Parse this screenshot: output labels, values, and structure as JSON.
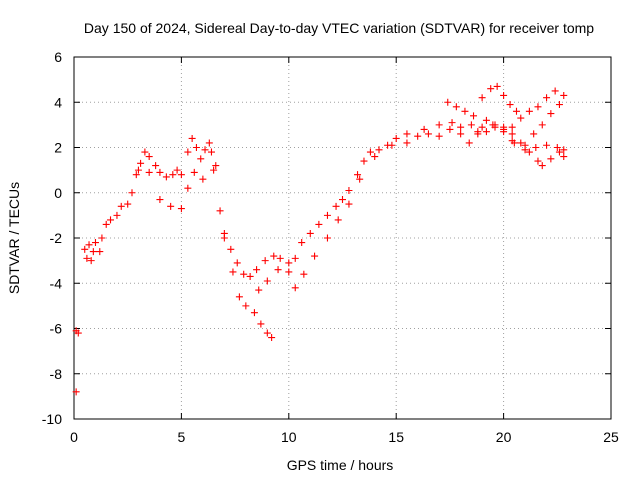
{
  "chart_data": {
    "type": "scatter",
    "title": "Day 150 of 2024, Sidereal Day-to-day VTEC variation (SDTVAR) for receiver tomp",
    "xlabel": "GPS time / hours",
    "ylabel": "SDTVAR / TECUs",
    "xlim": [
      0,
      25
    ],
    "ylim": [
      -10,
      6
    ],
    "xticks": [
      0,
      5,
      10,
      15,
      20,
      25
    ],
    "yticks": [
      -10,
      -8,
      -6,
      -4,
      -2,
      0,
      2,
      4,
      6
    ],
    "grid": true,
    "marker": "plus",
    "color": "#ff0000",
    "series": [
      {
        "points": [
          [
            0.1,
            -6.1
          ],
          [
            0.1,
            -8.8
          ],
          [
            0.2,
            -6.2
          ],
          [
            0.5,
            -2.5
          ],
          [
            0.6,
            -2.9
          ],
          [
            0.7,
            -2.3
          ],
          [
            0.8,
            -3.0
          ],
          [
            0.9,
            -2.6
          ],
          [
            1.0,
            -2.2
          ],
          [
            1.2,
            -2.6
          ],
          [
            1.3,
            -2.0
          ],
          [
            1.5,
            -1.4
          ],
          [
            1.7,
            -1.2
          ],
          [
            2.0,
            -1.0
          ],
          [
            2.2,
            -0.6
          ],
          [
            2.5,
            -0.5
          ],
          [
            2.7,
            0.0
          ],
          [
            2.9,
            0.8
          ],
          [
            3.1,
            1.3
          ],
          [
            3.3,
            1.8
          ],
          [
            3.5,
            1.6
          ],
          [
            3.8,
            1.2
          ],
          [
            4.0,
            0.9
          ],
          [
            4.3,
            0.7
          ],
          [
            4.6,
            0.8
          ],
          [
            4.8,
            1.0
          ],
          [
            5.0,
            0.8
          ],
          [
            5.3,
            1.8
          ],
          [
            5.5,
            2.4
          ],
          [
            5.7,
            2.0
          ],
          [
            5.9,
            1.5
          ],
          [
            6.1,
            1.9
          ],
          [
            6.3,
            2.2
          ],
          [
            6.5,
            1.0
          ],
          [
            6.8,
            -0.8
          ],
          [
            7.0,
            -1.8
          ],
          [
            7.3,
            -2.5
          ],
          [
            7.6,
            -3.1
          ],
          [
            7.9,
            -3.6
          ],
          [
            8.2,
            -3.7
          ],
          [
            8.5,
            -3.4
          ],
          [
            8.9,
            -3.0
          ],
          [
            9.3,
            -2.8
          ],
          [
            9.6,
            -2.9
          ],
          [
            10.0,
            -3.1
          ],
          [
            10.3,
            -2.9
          ],
          [
            10.6,
            -2.2
          ],
          [
            11.0,
            -1.8
          ],
          [
            11.4,
            -1.4
          ],
          [
            11.8,
            -1.0
          ],
          [
            12.2,
            -0.6
          ],
          [
            12.5,
            -0.3
          ],
          [
            12.8,
            0.1
          ],
          [
            13.2,
            0.8
          ],
          [
            13.5,
            1.4
          ],
          [
            13.8,
            1.8
          ],
          [
            14.2,
            1.9
          ],
          [
            14.6,
            2.1
          ],
          [
            15.0,
            2.4
          ],
          [
            15.5,
            2.2
          ],
          [
            16.0,
            2.5
          ],
          [
            16.5,
            2.6
          ],
          [
            17.0,
            2.5
          ],
          [
            17.5,
            2.8
          ],
          [
            18.0,
            2.9
          ],
          [
            18.5,
            3.0
          ],
          [
            19.0,
            2.9
          ],
          [
            19.5,
            3.0
          ],
          [
            20.0,
            2.8
          ],
          [
            20.5,
            2.2
          ],
          [
            21.0,
            1.9
          ],
          [
            21.5,
            2.0
          ],
          [
            22.0,
            2.1
          ],
          [
            22.5,
            2.0
          ],
          [
            22.8,
            1.9
          ],
          [
            3.0,
            1.0
          ],
          [
            3.5,
            0.9
          ],
          [
            4.0,
            -0.3
          ],
          [
            4.5,
            -0.6
          ],
          [
            5.0,
            -0.7
          ],
          [
            5.3,
            0.2
          ],
          [
            5.6,
            0.9
          ],
          [
            6.0,
            0.6
          ],
          [
            6.4,
            1.8
          ],
          [
            6.6,
            1.2
          ],
          [
            7.0,
            -2.0
          ],
          [
            7.4,
            -3.5
          ],
          [
            7.7,
            -4.6
          ],
          [
            8.0,
            -5.0
          ],
          [
            8.4,
            -5.3
          ],
          [
            8.7,
            -5.8
          ],
          [
            9.0,
            -6.2
          ],
          [
            9.2,
            -6.4
          ],
          [
            8.6,
            -4.3
          ],
          [
            9.0,
            -3.9
          ],
          [
            9.5,
            -3.4
          ],
          [
            10.0,
            -3.5
          ],
          [
            10.3,
            -4.2
          ],
          [
            10.7,
            -3.6
          ],
          [
            11.2,
            -2.8
          ],
          [
            11.8,
            -2.0
          ],
          [
            12.3,
            -1.2
          ],
          [
            12.8,
            -0.5
          ],
          [
            13.3,
            0.6
          ],
          [
            14.0,
            1.6
          ],
          [
            14.8,
            2.1
          ],
          [
            15.5,
            2.6
          ],
          [
            16.3,
            2.8
          ],
          [
            17.0,
            3.0
          ],
          [
            17.6,
            3.1
          ],
          [
            18.0,
            2.6
          ],
          [
            18.4,
            2.2
          ],
          [
            18.8,
            2.6
          ],
          [
            19.2,
            2.7
          ],
          [
            19.6,
            2.9
          ],
          [
            20.0,
            2.7
          ],
          [
            20.4,
            2.3
          ],
          [
            17.4,
            4.0
          ],
          [
            17.8,
            3.8
          ],
          [
            18.2,
            3.6
          ],
          [
            18.6,
            3.4
          ],
          [
            19.0,
            4.2
          ],
          [
            19.4,
            4.6
          ],
          [
            19.7,
            4.7
          ],
          [
            20.0,
            4.3
          ],
          [
            20.3,
            3.9
          ],
          [
            20.6,
            3.6
          ],
          [
            18.8,
            2.7
          ],
          [
            19.2,
            3.2
          ],
          [
            19.6,
            3.0
          ],
          [
            20.0,
            2.9
          ],
          [
            20.4,
            2.6
          ],
          [
            20.8,
            2.2
          ],
          [
            21.2,
            1.8
          ],
          [
            21.6,
            1.4
          ],
          [
            21.8,
            1.2
          ],
          [
            22.2,
            1.5
          ],
          [
            22.6,
            1.8
          ],
          [
            22.8,
            1.6
          ],
          [
            20.4,
            2.9
          ],
          [
            20.8,
            3.3
          ],
          [
            21.2,
            3.6
          ],
          [
            21.6,
            3.8
          ],
          [
            22.0,
            4.2
          ],
          [
            22.4,
            4.5
          ],
          [
            22.8,
            4.3
          ],
          [
            22.6,
            3.9
          ],
          [
            22.2,
            3.5
          ],
          [
            21.8,
            3.0
          ],
          [
            21.4,
            2.6
          ],
          [
            21.0,
            2.1
          ]
        ]
      }
    ]
  }
}
